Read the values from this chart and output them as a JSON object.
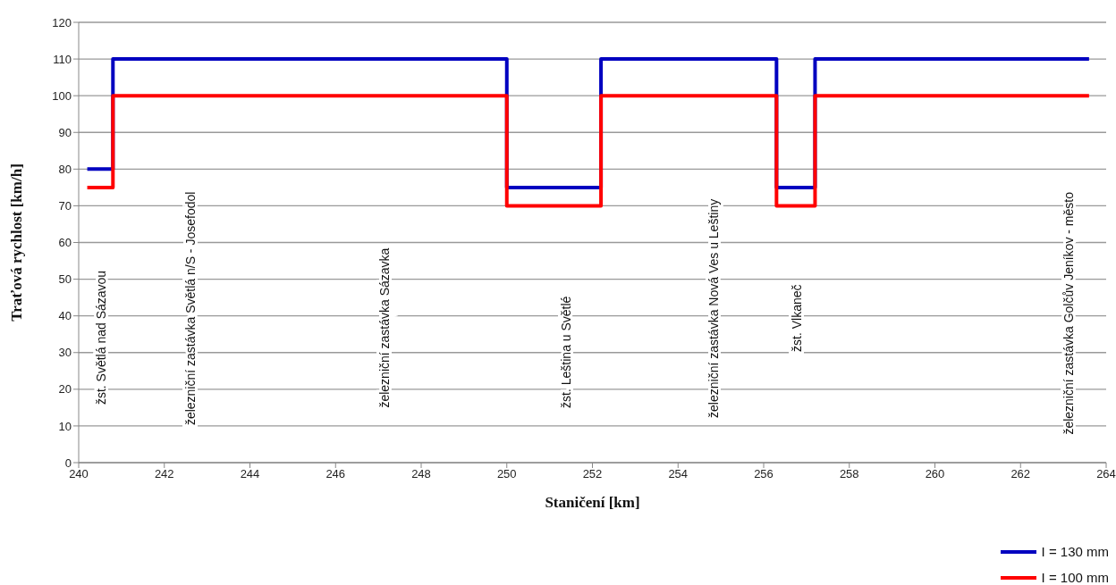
{
  "chart_data": {
    "type": "step",
    "xlabel": "Staničení [km]",
    "ylabel": "Traťová rychlost [km/h]",
    "x": [
      240.2,
      240.8,
      250,
      252.2,
      256.3,
      257.2,
      263.6
    ],
    "series": [
      {
        "name": "I = 130 mm",
        "color": "#0000c0",
        "values": [
          80,
          110,
          75,
          110,
          75,
          110,
          110
        ]
      },
      {
        "name": "I = 100 mm",
        "color": "#ff0000",
        "values": [
          75,
          100,
          70,
          100,
          70,
          100,
          100
        ]
      }
    ],
    "xlim": [
      240,
      264
    ],
    "xticks": [
      240,
      242,
      244,
      246,
      248,
      250,
      252,
      254,
      256,
      258,
      260,
      262,
      264
    ],
    "ylim": [
      0,
      120
    ],
    "yticks": [
      0,
      10,
      20,
      30,
      40,
      50,
      60,
      70,
      80,
      90,
      100,
      110,
      120
    ],
    "grid": "y",
    "legend": "bottom right",
    "marker": "none",
    "line_style": "solid",
    "annotations": [
      "žst. Světlá nad Sázavou",
      "železniční zastávka Světlá n/S - Josefodol",
      "železniční zastávka Sázavka",
      "žst. Leština u Světlé",
      "železniční zastávka Nová Ves u Leštiny",
      "žst. Vlkaneč",
      "železniční zastávka Golčův Jeníkov - město"
    ]
  }
}
